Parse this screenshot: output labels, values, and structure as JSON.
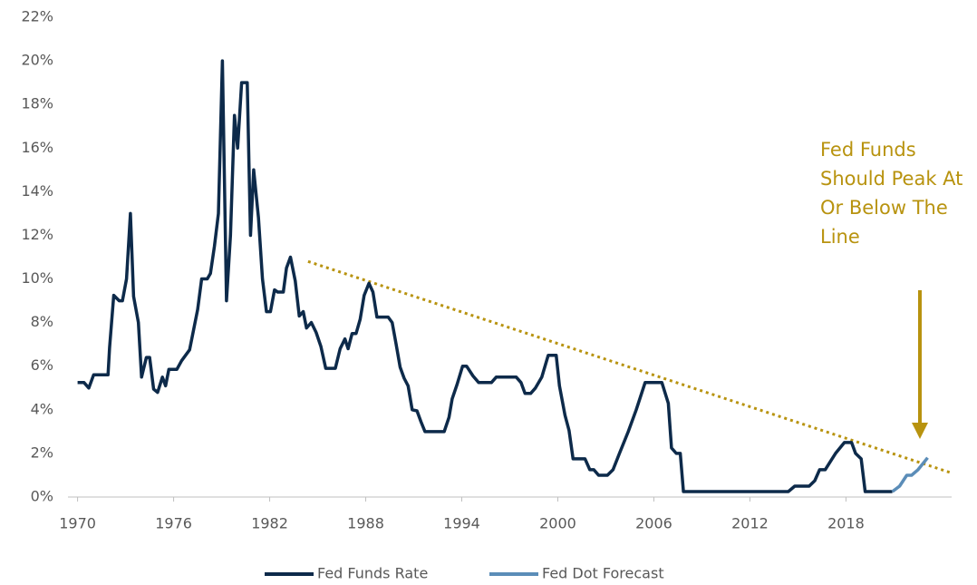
{
  "chart_data": {
    "type": "line",
    "xlim": [
      1969.4,
      2024.6
    ],
    "xticks": [
      1970,
      1976,
      1982,
      1988,
      1994,
      2000,
      2006,
      2012,
      2018
    ],
    "ylim": [
      0,
      22
    ],
    "yticks": [
      {
        "value": 0,
        "label": "0%"
      },
      {
        "value": 2,
        "label": "2%"
      },
      {
        "value": 4,
        "label": "4%"
      },
      {
        "value": 6,
        "label": "6%"
      },
      {
        "value": 8,
        "label": "8%"
      },
      {
        "value": 10,
        "label": "10%"
      },
      {
        "value": 12,
        "label": "12%"
      },
      {
        "value": 14,
        "label": "14%"
      },
      {
        "value": 16,
        "label": "16%"
      },
      {
        "value": 18,
        "label": "18%"
      },
      {
        "value": 20,
        "label": "20%"
      },
      {
        "value": 22,
        "label": "22%"
      }
    ],
    "grid": false,
    "legend": "bottom",
    "series": [
      {
        "name": "Fed Funds Rate",
        "color": "#0d2a4a",
        "x": [
          1970.0,
          1970.4,
          1970.7,
          1971.0,
          1971.9,
          1972.0,
          1972.26,
          1972.6,
          1972.8,
          1973.06,
          1973.3,
          1973.5,
          1973.8,
          1974.0,
          1974.3,
          1974.5,
          1974.75,
          1975.0,
          1975.3,
          1975.5,
          1975.7,
          1976.2,
          1976.5,
          1977.0,
          1977.5,
          1977.75,
          1978.1,
          1978.3,
          1978.55,
          1978.8,
          1979.05,
          1979.3,
          1979.55,
          1979.8,
          1980.0,
          1980.25,
          1980.6,
          1980.8,
          1981.0,
          1981.3,
          1981.55,
          1981.8,
          1982.05,
          1982.3,
          1982.5,
          1982.85,
          1983.05,
          1983.3,
          1983.6,
          1983.85,
          1984.1,
          1984.3,
          1984.6,
          1984.9,
          1985.2,
          1985.5,
          1986.1,
          1986.4,
          1986.7,
          1986.9,
          1987.15,
          1987.4,
          1987.65,
          1987.9,
          1988.2,
          1988.45,
          1988.7,
          1989.4,
          1989.65,
          1989.9,
          1990.15,
          1990.4,
          1990.65,
          1990.9,
          1991.2,
          1991.45,
          1991.7,
          1992.9,
          1993.2,
          1993.4,
          1993.7,
          1994.05,
          1994.3,
          1994.7,
          1995.05,
          1995.85,
          1996.15,
          1997.4,
          1997.7,
          1997.95,
          1998.3,
          1998.6,
          1999.0,
          1999.4,
          1999.9,
          2000.1,
          2000.45,
          2000.7,
          2000.95,
          2001.7,
          2002.0,
          2002.25,
          2002.55,
          2003.1,
          2003.45,
          2003.85,
          2004.4,
          2004.9,
          2005.45,
          2006.5,
          2006.9,
          2007.1,
          2007.4,
          2007.65,
          2007.85,
          2014.4,
          2014.8,
          2015.7,
          2016.05,
          2016.35,
          2016.7,
          2017.35,
          2017.9,
          2018.35,
          2018.6,
          2018.95,
          2019.2,
          2020.9
        ],
        "values": [
          5.25,
          5.25,
          5.0,
          5.6,
          5.6,
          6.85,
          9.25,
          9.0,
          9.0,
          10.0,
          13.0,
          9.2,
          8.0,
          5.5,
          6.4,
          6.4,
          4.95,
          4.8,
          5.5,
          5.1,
          5.85,
          5.85,
          6.25,
          6.75,
          8.6,
          10.0,
          10.0,
          10.25,
          11.5,
          13.0,
          20.0,
          9.0,
          12.0,
          17.5,
          16.0,
          19.0,
          19.0,
          12.0,
          15.0,
          12.8,
          10.0,
          8.5,
          8.5,
          9.5,
          9.4,
          9.4,
          10.5,
          11.0,
          9.9,
          8.3,
          8.5,
          7.75,
          8.0,
          7.55,
          6.9,
          5.9,
          5.9,
          6.8,
          7.25,
          6.8,
          7.5,
          7.5,
          8.15,
          9.25,
          9.8,
          9.4,
          8.25,
          8.25,
          8.0,
          7.0,
          5.95,
          5.45,
          5.1,
          4.0,
          3.95,
          3.45,
          3.0,
          3.0,
          3.65,
          4.5,
          5.15,
          6.0,
          6.0,
          5.55,
          5.25,
          5.25,
          5.5,
          5.5,
          5.25,
          4.75,
          4.75,
          5.0,
          5.5,
          6.5,
          6.5,
          5.1,
          3.75,
          3.05,
          1.75,
          1.75,
          1.25,
          1.25,
          1.0,
          1.0,
          1.25,
          2.0,
          3.0,
          4.0,
          5.25,
          5.25,
          4.3,
          2.25,
          2.0,
          2.0,
          0.25,
          0.25,
          0.5,
          0.5,
          0.75,
          1.25,
          1.25,
          2.0,
          2.5,
          2.5,
          2.0,
          1.75,
          0.25,
          0.25
        ]
      },
      {
        "name": "Fed Dot Forecast",
        "color": "#5b8db8",
        "x": [
          2020.9,
          2021.35,
          2021.8,
          2022.1,
          2022.5,
          2023.1
        ],
        "values": [
          0.25,
          0.5,
          1.0,
          1.0,
          1.25,
          1.8
        ]
      }
    ],
    "trend_line": {
      "color": "#b8930f",
      "x": [
        1984.4,
        2024.6
      ],
      "values": [
        10.8,
        1.1
      ]
    },
    "annotation": [
      "Fed Funds",
      "Should Peak At",
      "Or Below The",
      "Line"
    ]
  }
}
